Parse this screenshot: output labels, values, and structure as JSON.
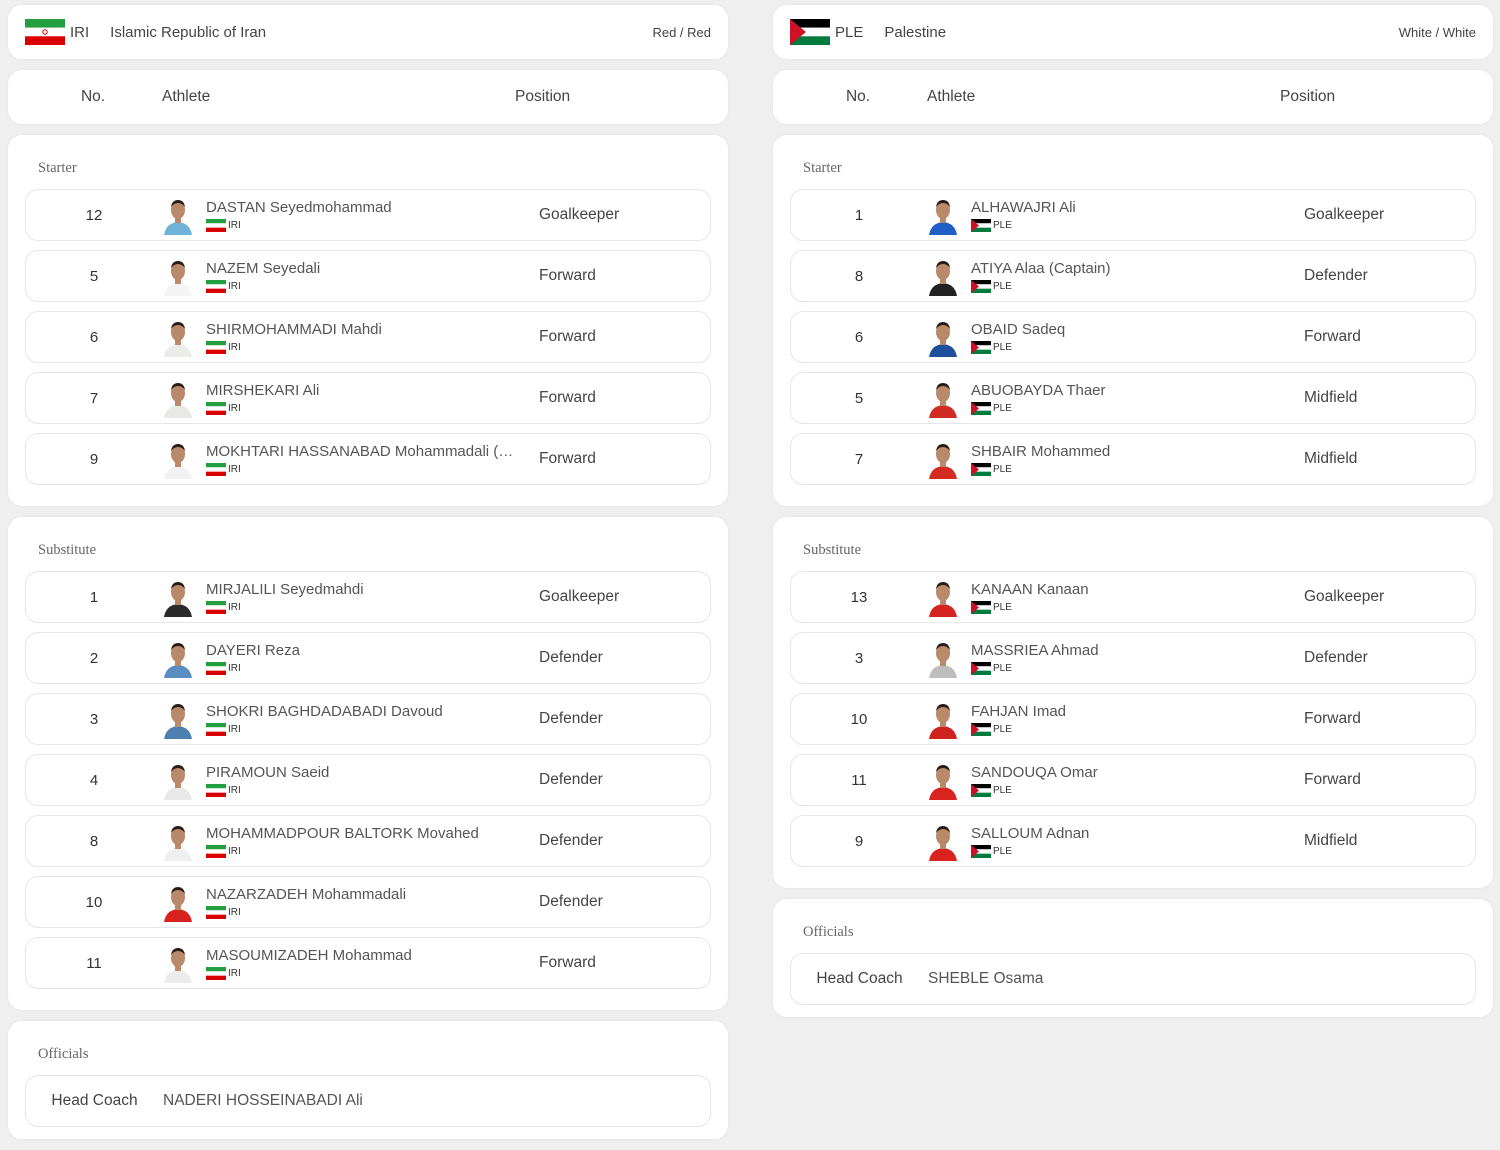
{
  "teams": [
    {
      "code": "IRI",
      "name": "Islamic Republic of Iran",
      "kit": "Red / Red",
      "flag": "iran-flag",
      "headers": {
        "no": "No.",
        "athlete": "Athlete",
        "position": "Position"
      },
      "starter_title": "Starter",
      "starters": [
        {
          "no": "12",
          "name": "DASTAN Seyedmohammad",
          "nat": "IRI",
          "position": "Goalkeeper"
        },
        {
          "no": "5",
          "name": "NAZEM Seyedali",
          "nat": "IRI",
          "position": "Forward"
        },
        {
          "no": "6",
          "name": "SHIRMOHAMMADI Mahdi",
          "nat": "IRI",
          "position": "Forward"
        },
        {
          "no": "7",
          "name": "MIRSHEKARI Ali",
          "nat": "IRI",
          "position": "Forward"
        },
        {
          "no": "9",
          "name": "MOKHTARI HASSANABAD Mohammadali (Captain)",
          "nat": "IRI",
          "position": "Forward"
        }
      ],
      "substitute_title": "Substitute",
      "substitutes": [
        {
          "no": "1",
          "name": "MIRJALILI Seyedmahdi",
          "nat": "IRI",
          "position": "Goalkeeper"
        },
        {
          "no": "2",
          "name": "DAYERI Reza",
          "nat": "IRI",
          "position": "Defender"
        },
        {
          "no": "3",
          "name": "SHOKRI BAGHDADABADI Davoud",
          "nat": "IRI",
          "position": "Defender"
        },
        {
          "no": "4",
          "name": "PIRAMOUN Saeid",
          "nat": "IRI",
          "position": "Defender"
        },
        {
          "no": "8",
          "name": "MOHAMMADPOUR BALTORK Movahed",
          "nat": "IRI",
          "position": "Defender"
        },
        {
          "no": "10",
          "name": "NAZARZADEH Mohammadali",
          "nat": "IRI",
          "position": "Defender"
        },
        {
          "no": "11",
          "name": "MASOUMIZADEH Mohammad",
          "nat": "IRI",
          "position": "Forward"
        }
      ],
      "officials_title": "Officials",
      "officials": [
        {
          "role": "Head Coach",
          "name": "NADERI HOSSEINABADI Ali"
        }
      ]
    },
    {
      "code": "PLE",
      "name": "Palestine",
      "kit": "White / White",
      "flag": "palestine-flag",
      "headers": {
        "no": "No.",
        "athlete": "Athlete",
        "position": "Position"
      },
      "starter_title": "Starter",
      "starters": [
        {
          "no": "1",
          "name": "ALHAWAJRI Ali",
          "nat": "PLE",
          "position": "Goalkeeper"
        },
        {
          "no": "8",
          "name": "ATIYA Alaa (Captain)",
          "nat": "PLE",
          "position": "Defender"
        },
        {
          "no": "6",
          "name": "OBAID Sadeq",
          "nat": "PLE",
          "position": "Forward"
        },
        {
          "no": "5",
          "name": "ABUOBAYDA Thaer",
          "nat": "PLE",
          "position": "Midfield"
        },
        {
          "no": "7",
          "name": "SHBAIR Mohammed",
          "nat": "PLE",
          "position": "Midfield"
        }
      ],
      "substitute_title": "Substitute",
      "substitutes": [
        {
          "no": "13",
          "name": "KANAAN Kanaan",
          "nat": "PLE",
          "position": "Goalkeeper"
        },
        {
          "no": "3",
          "name": "MASSRIEA Ahmad",
          "nat": "PLE",
          "position": "Defender"
        },
        {
          "no": "10",
          "name": "FAHJAN Imad",
          "nat": "PLE",
          "position": "Forward"
        },
        {
          "no": "11",
          "name": "SANDOUQA Omar",
          "nat": "PLE",
          "position": "Forward"
        },
        {
          "no": "9",
          "name": "SALLOUM Adnan",
          "nat": "PLE",
          "position": "Midfield"
        }
      ],
      "officials_title": "Officials",
      "officials": [
        {
          "role": "Head Coach",
          "name": "SHEBLE Osama"
        }
      ]
    }
  ],
  "colors": {
    "iran_green": "#239f40",
    "iran_red": "#da0000",
    "ple_black": "#000000",
    "ple_green": "#007a3d",
    "ple_red": "#ce1126"
  }
}
